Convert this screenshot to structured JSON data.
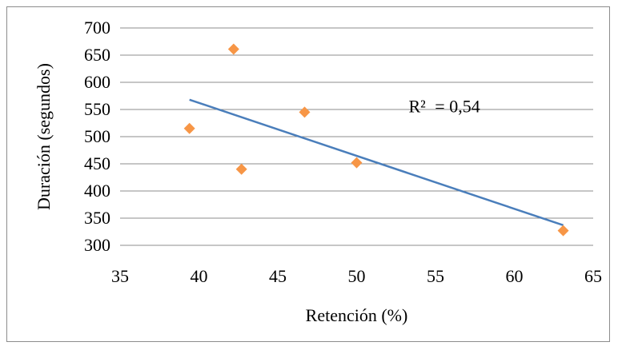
{
  "chart_data": {
    "type": "scatter",
    "xlabel": "Retención (%)",
    "ylabel": "Duración (segundos)",
    "xlim": [
      35,
      65
    ],
    "ylim": [
      300,
      700
    ],
    "x_ticks": [
      35,
      40,
      45,
      50,
      55,
      60,
      65
    ],
    "y_ticks": [
      300,
      350,
      400,
      450,
      500,
      550,
      600,
      650,
      700
    ],
    "x_tick_labels": [
      "35",
      "40",
      "45",
      "50",
      "55",
      "60",
      "65"
    ],
    "y_tick_labels": [
      "300",
      "350",
      "400",
      "450",
      "500",
      "550",
      "600",
      "650",
      "700"
    ],
    "grid": "horizontal",
    "legend": "none",
    "points": [
      {
        "x": 39.4,
        "y": 515
      },
      {
        "x": 42.2,
        "y": 661
      },
      {
        "x": 42.7,
        "y": 440
      },
      {
        "x": 46.7,
        "y": 545
      },
      {
        "x": 50.0,
        "y": 452
      },
      {
        "x": 63.1,
        "y": 327
      }
    ],
    "trendline": {
      "x": [
        39.4,
        63.1
      ],
      "y": [
        568,
        337
      ]
    },
    "annotation": {
      "label": "R²",
      "value": "= 0,54",
      "anchor": {
        "x": 53.3,
        "y": 555
      }
    },
    "colors": {
      "marker": "#f79646",
      "trendline": "#4a7ebb",
      "grid": "#8c8c8c"
    }
  }
}
